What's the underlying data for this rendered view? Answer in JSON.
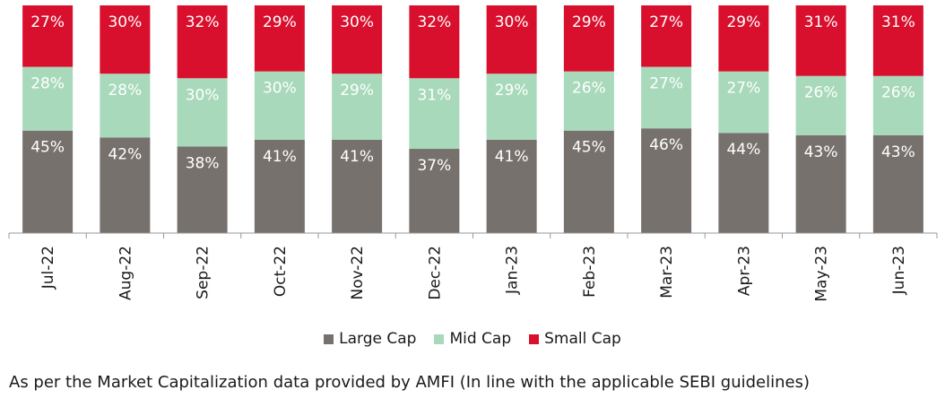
{
  "chart_data": {
    "type": "bar",
    "stacked": true,
    "percent_stacked": true,
    "categories": [
      "Jul-22",
      "Aug-22",
      "Sep-22",
      "Oct-22",
      "Nov-22",
      "Dec-22",
      "Jan-23",
      "Feb-23",
      "Mar-23",
      "Apr-23",
      "May-23",
      "Jun-23"
    ],
    "series": [
      {
        "name": "Large Cap",
        "color": "#77716d",
        "values": [
          45,
          42,
          38,
          41,
          41,
          37,
          41,
          45,
          46,
          44,
          43,
          43
        ]
      },
      {
        "name": "Mid Cap",
        "color": "#a8d9bb",
        "values": [
          28,
          28,
          30,
          30,
          29,
          31,
          29,
          26,
          27,
          27,
          26,
          26
        ]
      },
      {
        "name": "Small Cap",
        "color": "#d9102d",
        "values": [
          27,
          30,
          32,
          29,
          30,
          32,
          30,
          29,
          27,
          29,
          31,
          31
        ]
      }
    ],
    "value_suffix": "%",
    "legend_position": "bottom",
    "grid": false
  },
  "footnote": "As per the Market Capitalization data provided by AMFI (In line with the applicable SEBI guidelines)"
}
